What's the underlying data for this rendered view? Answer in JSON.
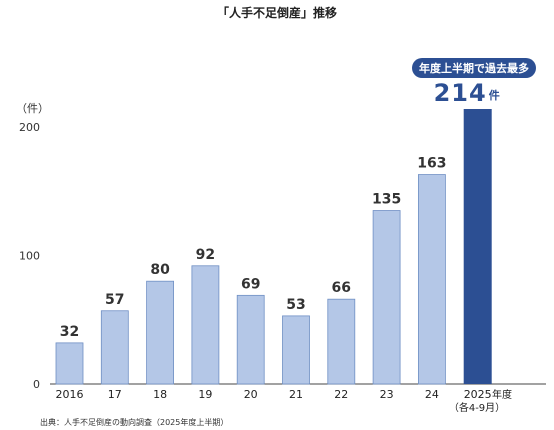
{
  "chart_data": {
    "type": "bar",
    "title": "「人手不足倒産」推移",
    "y_unit": "（件）",
    "ylim": [
      0,
      200
    ],
    "y_ticks": [
      0,
      100,
      200
    ],
    "x_unit": "年度",
    "categories": [
      "2016",
      "17",
      "18",
      "19",
      "20",
      "21",
      "22",
      "23",
      "24",
      "2025"
    ],
    "values": [
      32,
      57,
      80,
      92,
      69,
      53,
      66,
      135,
      163,
      214
    ],
    "highlight_index": 9,
    "highlight_value_unit": "件",
    "highlight_sublabel": "（各4-9月）",
    "callout": "年度上半期で過去最多",
    "source": "出典：人手不足倒産の動向調査（2025年度上半期）",
    "grid": false,
    "legend": "none"
  },
  "colors": {
    "bar": "#b4c7e7",
    "bar_stroke": "#6f8fc4",
    "highlight_bar": "#2c4f93",
    "callout_bg": "#2c4f93",
    "highlight_text": "#2c4f93",
    "axis": "#444444"
  }
}
